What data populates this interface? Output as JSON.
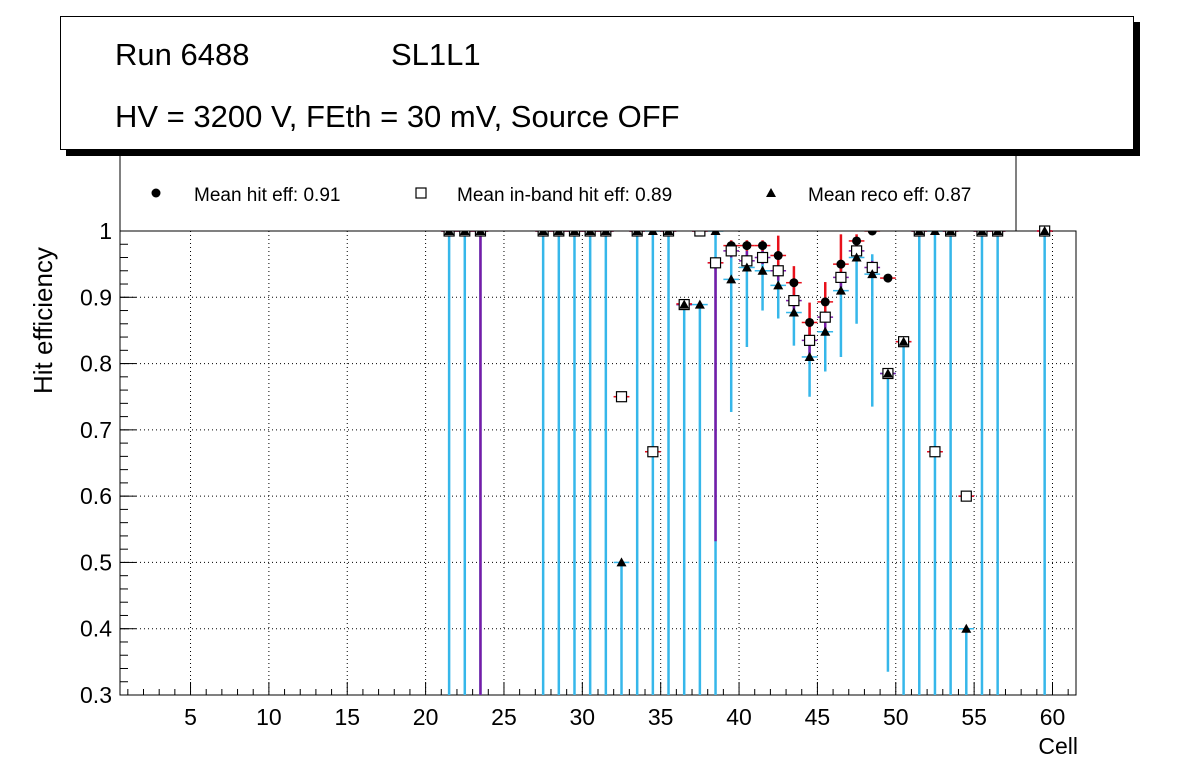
{
  "info": {
    "run": "Run 6488",
    "layer": "SL1L1",
    "conditions": "HV = 3200 V, FEth = 30 mV, Source OFF"
  },
  "chart_data": {
    "type": "scatter",
    "title": "Run 6488   SL1L1   HV = 3200 V, FEth = 30 mV, Source OFF",
    "xlabel": "Cell",
    "ylabel": "Hit efficiency",
    "xlim": [
      0.5,
      61.5
    ],
    "ylim": [
      0.3,
      1.0
    ],
    "xticks": [
      5,
      10,
      15,
      20,
      25,
      30,
      35,
      40,
      45,
      50,
      55,
      60
    ],
    "yticks": [
      0.3,
      0.4,
      0.5,
      0.6,
      0.7,
      0.8,
      0.9,
      1.0
    ],
    "ytick_labels": [
      "0.3",
      "0.4",
      "0.5",
      "0.6",
      "0.7",
      "0.8",
      "0.9",
      "1"
    ],
    "grid": true,
    "legend": [
      {
        "label": "Mean hit  eff: 0.91",
        "marker": "circle"
      },
      {
        "label": "Mean in-band hit eff: 0.89",
        "marker": "open-square"
      },
      {
        "label": "Mean reco eff: 0.87",
        "marker": "triangle"
      }
    ],
    "colors": {
      "hit_err": "#e8101a",
      "inband_err": "#7a1aa6",
      "reco_err": "#36b7ea",
      "marker": "#000000"
    },
    "cells": [
      21.5,
      22.5,
      23.5,
      27.5,
      28.5,
      29.5,
      30.5,
      31.5,
      32.5,
      33.5,
      34.5,
      35.5,
      36.5,
      37.5,
      38.5,
      39.5,
      40.5,
      41.5,
      42.5,
      43.5,
      44.5,
      45.5,
      46.5,
      47.5,
      48.5,
      49.5,
      50.5,
      51.5,
      52.5,
      53.5,
      54.5,
      55.5,
      56.5,
      59.5
    ],
    "series": [
      {
        "name": "Mean hit eff",
        "marker": "circle",
        "values": [
          1.0,
          1.0,
          1.0,
          1.0,
          1.0,
          1.0,
          1.0,
          1.0,
          0.75,
          1.0,
          0.667,
          1.0,
          0.89,
          1.0,
          0.952,
          0.978,
          0.978,
          0.978,
          0.963,
          0.922,
          0.862,
          0.893,
          0.95,
          0.985,
          1.0,
          0.929,
          0.833,
          1.0,
          0.667,
          1.0,
          0.6,
          1.0,
          1.0,
          1.0
        ],
        "err_low": [
          0.0,
          0.0,
          0.0,
          0.0,
          0.0,
          0.0,
          0.0,
          0.0,
          0.0,
          0.0,
          0.0,
          0.0,
          0.0,
          0.0,
          0.0,
          0.008,
          0.008,
          0.008,
          0.02,
          0.025,
          0.03,
          0.028,
          0.02,
          0.01,
          0.0,
          0.0,
          0.0,
          0.0,
          0.0,
          0.0,
          0.0,
          0.0,
          0.0,
          0.0
        ],
        "err_high": [
          0.0,
          0.0,
          0.0,
          0.0,
          0.0,
          0.0,
          0.0,
          0.0,
          0.0,
          0.0,
          0.0,
          0.0,
          0.0,
          0.0,
          0.0,
          0.008,
          0.008,
          0.008,
          0.03,
          0.025,
          0.03,
          0.03,
          0.045,
          0.01,
          0.0,
          0.0,
          0.0,
          0.0,
          0.0,
          0.0,
          0.0,
          0.0,
          0.0,
          0.0
        ]
      },
      {
        "name": "Mean in-band hit eff",
        "marker": "open-square",
        "values": [
          1.0,
          1.0,
          1.0,
          1.0,
          1.0,
          1.0,
          1.0,
          1.0,
          0.75,
          1.0,
          0.667,
          1.0,
          0.889,
          1.0,
          0.952,
          0.97,
          0.955,
          0.96,
          0.94,
          0.895,
          0.835,
          0.87,
          0.93,
          0.97,
          0.945,
          0.785,
          0.833,
          1.0,
          0.667,
          1.0,
          0.6,
          1.0,
          1.0,
          1.0
        ],
        "err_low": [
          0.0,
          0.0,
          0.7,
          0.0,
          0.0,
          0.0,
          0.0,
          0.0,
          0.0,
          0.0,
          0.0,
          0.0,
          0.0,
          0.0,
          0.42,
          0.01,
          0.015,
          0.01,
          0.015,
          0.02,
          0.025,
          0.02,
          0.015,
          0.01,
          0.01,
          0.0,
          0.0,
          0.0,
          0.0,
          0.0,
          0.0,
          0.0,
          0.0,
          0.0
        ],
        "err_high": [
          0.0,
          0.0,
          0.0,
          0.0,
          0.0,
          0.0,
          0.0,
          0.0,
          0.0,
          0.0,
          0.0,
          0.0,
          0.0,
          0.0,
          0.0,
          0.01,
          0.015,
          0.02,
          0.015,
          0.02,
          0.025,
          0.02,
          0.015,
          0.01,
          0.01,
          0.0,
          0.0,
          0.0,
          0.0,
          0.0,
          0.0,
          0.0,
          0.0,
          0.0
        ]
      },
      {
        "name": "Mean reco eff",
        "marker": "triangle",
        "values": [
          1.0,
          1.0,
          1.0,
          1.0,
          1.0,
          1.0,
          1.0,
          1.0,
          0.5,
          1.0,
          1.0,
          1.0,
          0.889,
          0.889,
          1.0,
          0.927,
          0.945,
          0.94,
          0.918,
          0.877,
          0.81,
          0.848,
          0.91,
          0.96,
          0.935,
          0.785,
          0.833,
          1.0,
          1.0,
          1.0,
          0.4,
          1.0,
          1.0,
          1.0
        ],
        "err_low": [
          0.7,
          0.7,
          0.7,
          0.7,
          0.7,
          0.7,
          0.7,
          0.7,
          0.2,
          0.7,
          0.7,
          0.7,
          0.589,
          0.589,
          0.7,
          0.2,
          0.12,
          0.06,
          0.05,
          0.05,
          0.06,
          0.06,
          0.1,
          0.1,
          0.2,
          0.45,
          0.533,
          0.7,
          0.7,
          0.7,
          0.1,
          0.7,
          0.7,
          0.7
        ],
        "err_high": [
          0.0,
          0.0,
          0.0,
          0.0,
          0.0,
          0.0,
          0.0,
          0.0,
          0.0,
          0.0,
          0.0,
          0.0,
          0.0,
          0.0,
          0.0,
          0.05,
          0.03,
          0.03,
          0.03,
          0.04,
          0.05,
          0.05,
          0.04,
          0.02,
          0.03,
          0.0,
          0.0,
          0.0,
          0.0,
          0.0,
          0.0,
          0.0,
          0.0,
          0.0
        ]
      }
    ]
  }
}
